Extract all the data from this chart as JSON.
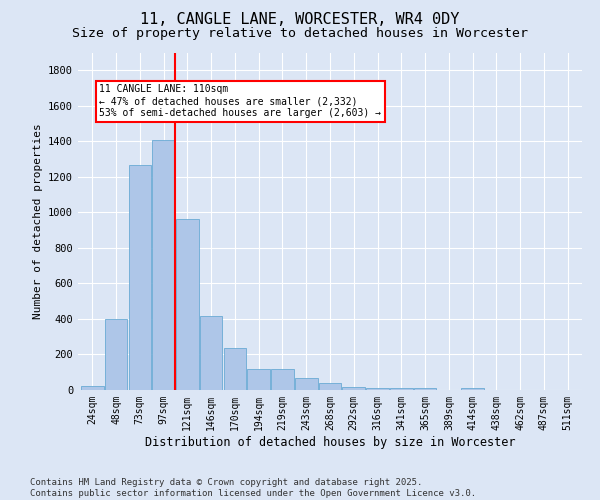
{
  "title": "11, CANGLE LANE, WORCESTER, WR4 0DY",
  "subtitle": "Size of property relative to detached houses in Worcester",
  "xlabel": "Distribution of detached houses by size in Worcester",
  "ylabel": "Number of detached properties",
  "categories": [
    "24sqm",
    "48sqm",
    "73sqm",
    "97sqm",
    "121sqm",
    "146sqm",
    "170sqm",
    "194sqm",
    "219sqm",
    "243sqm",
    "268sqm",
    "292sqm",
    "316sqm",
    "341sqm",
    "365sqm",
    "389sqm",
    "414sqm",
    "438sqm",
    "462sqm",
    "487sqm",
    "511sqm"
  ],
  "values": [
    25,
    400,
    1265,
    1405,
    960,
    415,
    235,
    120,
    120,
    65,
    40,
    15,
    10,
    10,
    10,
    0,
    10,
    0,
    0,
    0,
    0
  ],
  "bar_color": "#aec6e8",
  "bar_edgecolor": "#6aaad4",
  "vline_color": "red",
  "vline_x_index": 3.5,
  "annotation_text": "11 CANGLE LANE: 110sqm\n← 47% of detached houses are smaller (2,332)\n53% of semi-detached houses are larger (2,603) →",
  "annotation_box_color": "white",
  "annotation_box_edgecolor": "red",
  "ylim": [
    0,
    1900
  ],
  "yticks": [
    0,
    200,
    400,
    600,
    800,
    1000,
    1200,
    1400,
    1600,
    1800
  ],
  "background_color": "#dce6f5",
  "footer": "Contains HM Land Registry data © Crown copyright and database right 2025.\nContains public sector information licensed under the Open Government Licence v3.0.",
  "title_fontsize": 11,
  "subtitle_fontsize": 9.5,
  "xlabel_fontsize": 8.5,
  "ylabel_fontsize": 8,
  "footer_fontsize": 6.5
}
